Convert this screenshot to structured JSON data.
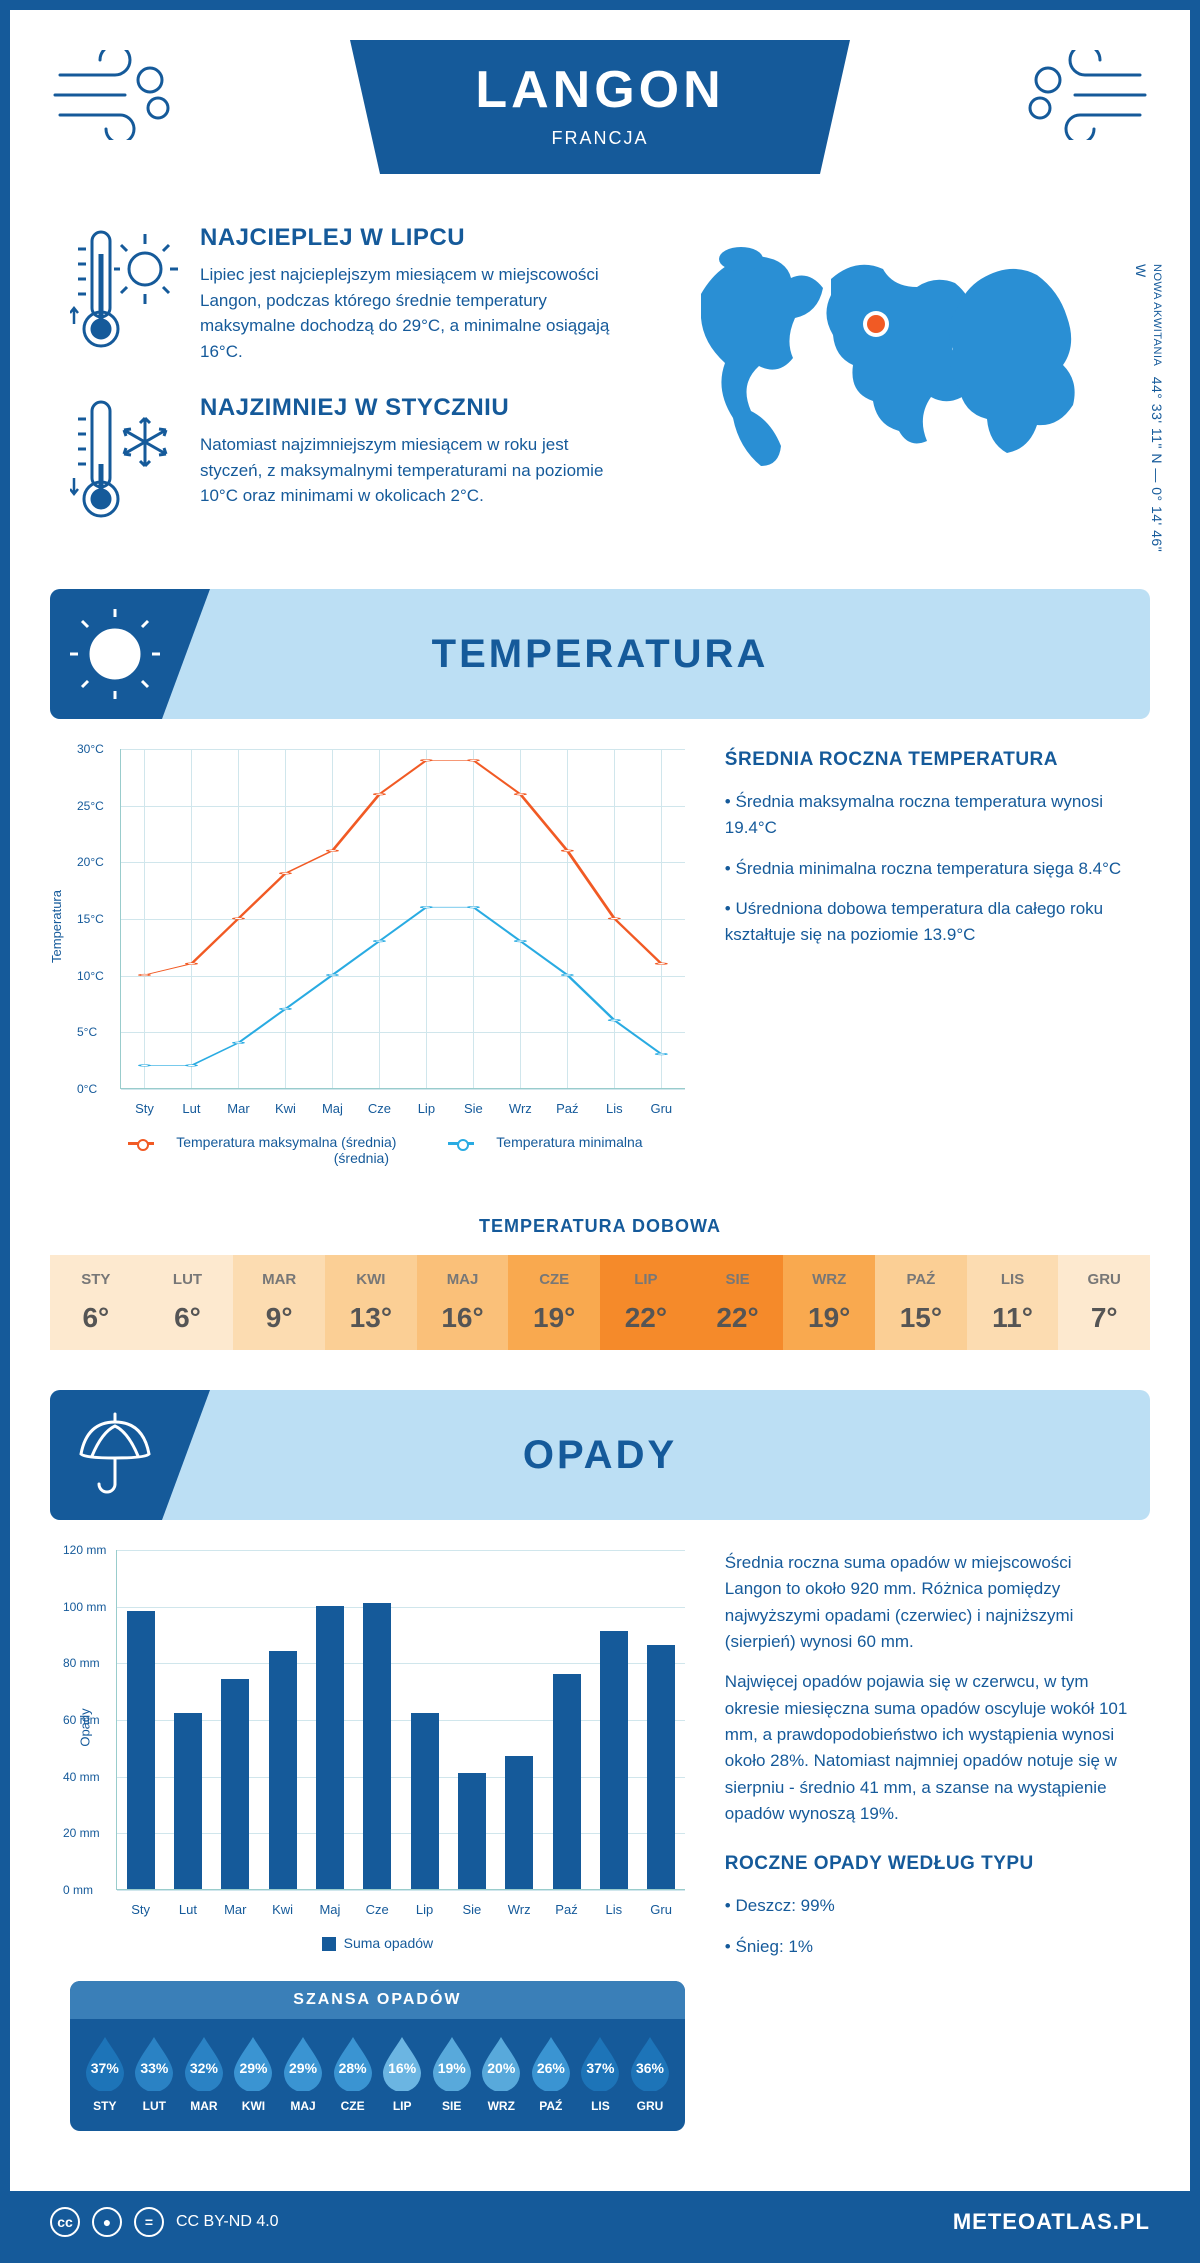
{
  "header": {
    "city": "LANGON",
    "country": "FRANCJA"
  },
  "coords": {
    "region": "NOWA AKWITANIA",
    "lat": "44° 33' 11\" N — 0° 14' 46\" W"
  },
  "facts": {
    "hot": {
      "title": "NAJCIEPLEJ W LIPCU",
      "body": "Lipiec jest najcieplejszym miesiącem w miejscowości Langon, podczas którego średnie temperatury maksymalne dochodzą do 29°C, a minimalne osiągają 16°C."
    },
    "cold": {
      "title": "NAJZIMNIEJ W STYCZNIU",
      "body": "Natomiast najzimniejszym miesiącem w roku jest styczeń, z maksymalnymi temperaturami na poziomie 10°C oraz minimami w okolicach 2°C."
    }
  },
  "sections": {
    "temp": "TEMPERATURA",
    "rain": "OPADY"
  },
  "temp_chart": {
    "type": "line",
    "ylabel": "Temperatura",
    "months": [
      "Sty",
      "Lut",
      "Mar",
      "Kwi",
      "Maj",
      "Cze",
      "Lip",
      "Sie",
      "Wrz",
      "Paź",
      "Lis",
      "Gru"
    ],
    "max": [
      10,
      11,
      15,
      19,
      21,
      26,
      29,
      29,
      26,
      21,
      15,
      11
    ],
    "min": [
      2,
      2,
      4,
      7,
      10,
      13,
      16,
      16,
      13,
      10,
      6,
      3
    ],
    "ylim": [
      0,
      30
    ],
    "ytick_step": 5,
    "ytick_suffix": "°C",
    "max_color": "#f15a24",
    "min_color": "#29abe2",
    "grid_color": "#d0e6ec",
    "legend_max": "Temperatura maksymalna (średnia)",
    "legend_min": "Temperatura minimalna (średnia)"
  },
  "temp_side": {
    "title": "ŚREDNIA ROCZNA TEMPERATURA",
    "items": [
      "Średnia maksymalna roczna temperatura wynosi 19.4°C",
      "Średnia minimalna roczna temperatura sięga 8.4°C",
      "Uśredniona dobowa temperatura dla całego roku kształtuje się na poziomie 13.9°C"
    ]
  },
  "daily": {
    "title": "TEMPERATURA DOBOWA",
    "months": [
      "STY",
      "LUT",
      "MAR",
      "KWI",
      "MAJ",
      "CZE",
      "LIP",
      "SIE",
      "WRZ",
      "PAŹ",
      "LIS",
      "GRU"
    ],
    "values": [
      "6°",
      "6°",
      "9°",
      "13°",
      "16°",
      "19°",
      "22°",
      "22°",
      "19°",
      "15°",
      "11°",
      "7°"
    ],
    "colors": [
      "#fde9cf",
      "#fde9cf",
      "#fcdcb1",
      "#fbcf95",
      "#fac079",
      "#f9a94f",
      "#f58a2a",
      "#f58a2a",
      "#f9a94f",
      "#fbcf95",
      "#fcdcb1",
      "#fde9cf"
    ]
  },
  "rain_chart": {
    "type": "bar",
    "ylabel": "Opady",
    "months": [
      "Sty",
      "Lut",
      "Mar",
      "Kwi",
      "Maj",
      "Cze",
      "Lip",
      "Sie",
      "Wrz",
      "Paź",
      "Lis",
      "Gru"
    ],
    "values": [
      98,
      62,
      74,
      84,
      100,
      101,
      62,
      41,
      47,
      76,
      91,
      86
    ],
    "ylim": [
      0,
      120
    ],
    "ytick_step": 20,
    "ytick_suffix": " mm",
    "bar_color": "#155a9a",
    "legend": "Suma opadów"
  },
  "rain_side": {
    "p1": "Średnia roczna suma opadów w miejscowości Langon to około 920 mm. Różnica pomiędzy najwyższymi opadami (czerwiec) i najniższymi (sierpień) wynosi 60 mm.",
    "p2": "Najwięcej opadów pojawia się w czerwcu, w tym okresie miesięczna suma opadów oscyluje wokół 101 mm, a prawdopodobieństwo ich wystąpienia wynosi około 28%. Natomiast najmniej opadów notuje się w sierpniu - średnio 41 mm, a szanse na wystąpienie opadów wynoszą 19%.",
    "types_title": "ROCZNE OPADY WEDŁUG TYPU",
    "types": [
      "Deszcz: 99%",
      "Śnieg: 1%"
    ]
  },
  "chance": {
    "title": "SZANSA OPADÓW",
    "months": [
      "STY",
      "LUT",
      "MAR",
      "KWI",
      "MAJ",
      "CZE",
      "LIP",
      "SIE",
      "WRZ",
      "PAŹ",
      "LIS",
      "GRU"
    ],
    "pct": [
      "37%",
      "33%",
      "32%",
      "29%",
      "29%",
      "28%",
      "16%",
      "19%",
      "20%",
      "26%",
      "37%",
      "36%"
    ],
    "colors": [
      "#1d74b8",
      "#2a82c4",
      "#2a82c4",
      "#3a94d2",
      "#3a94d2",
      "#3a94d2",
      "#6bb5e2",
      "#58a9db",
      "#58a9db",
      "#3a94d2",
      "#1d74b8",
      "#1d74b8"
    ]
  },
  "footer": {
    "license": "CC BY-ND 4.0",
    "brand": "METEOATLAS.PL"
  }
}
